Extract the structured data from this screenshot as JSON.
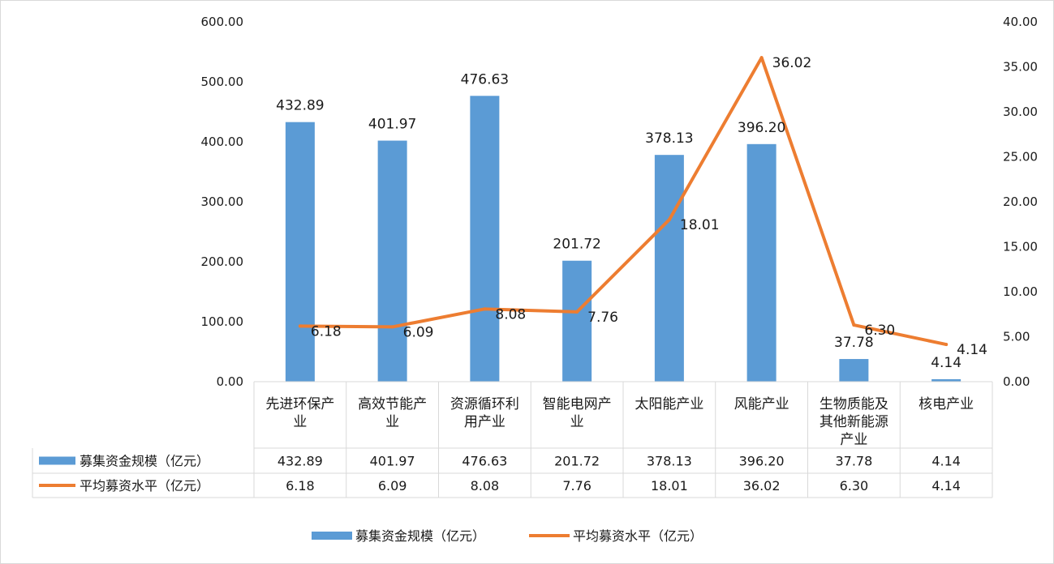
{
  "chart_data": {
    "type": "bar",
    "categories": [
      [
        "先进环保产",
        "业"
      ],
      [
        "高效节能产",
        "业"
      ],
      [
        "资源循环利",
        "用产业"
      ],
      [
        "智能电网产",
        "业"
      ],
      [
        "太阳能产业"
      ],
      [
        "风能产业"
      ],
      [
        "生物质能及",
        "其他新能源",
        "产业"
      ],
      [
        "核电产业"
      ]
    ],
    "series": [
      {
        "name": "募集资金规模（亿元）",
        "type": "bar",
        "axis": "left",
        "color": "#5b9bd5",
        "values": [
          432.89,
          401.97,
          476.63,
          201.72,
          378.13,
          396.2,
          37.78,
          4.14
        ],
        "labels": [
          "432.89",
          "401.97",
          "476.63",
          "201.72",
          "378.13",
          "396.20",
          "37.78",
          "4.14"
        ]
      },
      {
        "name": "平均募资水平（亿元）",
        "type": "line",
        "axis": "right",
        "color": "#ed7d31",
        "values": [
          6.18,
          6.09,
          8.08,
          7.76,
          18.01,
          36.02,
          6.3,
          4.14
        ],
        "labels": [
          "6.18",
          "6.09",
          "8.08",
          "7.76",
          "18.01",
          "36.02",
          "6.30",
          "4.14"
        ]
      }
    ],
    "y_left": {
      "ylim": [
        0,
        600
      ],
      "ticks": [
        "0.00",
        "100.00",
        "200.00",
        "300.00",
        "400.00",
        "500.00",
        "600.00"
      ]
    },
    "y_right": {
      "ylim": [
        0,
        40
      ],
      "ticks": [
        "0.00",
        "5.00",
        "10.00",
        "15.00",
        "20.00",
        "25.00",
        "30.00",
        "35.00",
        "40.00"
      ]
    },
    "grid": false,
    "legend": "bottom",
    "data_table": true
  }
}
